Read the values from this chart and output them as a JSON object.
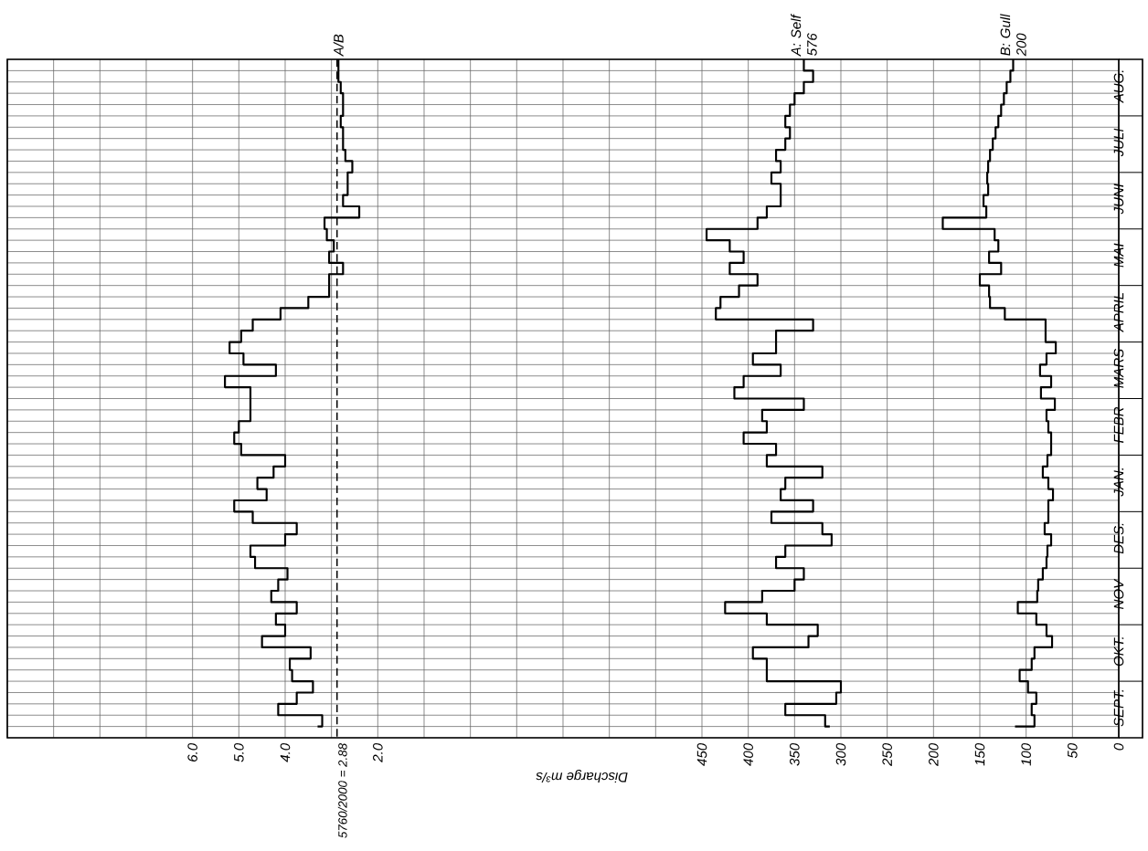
{
  "chart_data": {
    "type": "step",
    "orientation": "horizontal",
    "categories": [
      null,
      null,
      "AUG.",
      null,
      null,
      null,
      null,
      "JULI",
      null,
      null,
      null,
      null,
      "JUNI",
      null,
      null,
      null,
      null,
      "MAI",
      null,
      null,
      null,
      null,
      "APRIL",
      null,
      null,
      null,
      null,
      "MARS",
      null,
      null,
      null,
      null,
      "FEBR",
      null,
      null,
      null,
      null,
      "JAN.",
      null,
      null,
      null,
      null,
      "DES.",
      null,
      null,
      null,
      null,
      "NOV",
      null,
      null,
      null,
      null,
      "OKT.",
      null,
      null,
      null,
      null,
      "SEPT.",
      null,
      null
    ],
    "xlabel": "Discharge m³/s",
    "xlim": [
      1200,
      0
    ],
    "xticks": [
      0,
      50,
      100,
      150,
      200,
      250,
      300,
      350,
      400,
      450,
      {
        "value": 500,
        "label": null
      },
      {
        "value": 550,
        "label": null
      },
      {
        "value": 600,
        "label": null
      },
      {
        "value": 650,
        "label": null
      },
      {
        "value": 700,
        "label": null
      },
      {
        "value": 750,
        "label": null
      },
      {
        "value": 800,
        "label": null
      },
      {
        "value": 850,
        "label": null
      },
      {
        "value": 900,
        "label": null
      },
      {
        "value": 950,
        "label": null
      },
      {
        "value": 1000,
        "label": null
      },
      {
        "value": 1050,
        "label": null
      },
      {
        "value": 1100,
        "label": null
      },
      {
        "value": 1150,
        "label": null
      },
      {
        "value": 1200,
        "label": null
      }
    ],
    "x2lim": [
      10,
      -14
    ],
    "x2ticks": [
      {
        "value": 2,
        "label": "2.0"
      },
      {
        "value": 4,
        "label": "4.0"
      },
      {
        "value": 5,
        "label": "5.0"
      },
      {
        "value": 6,
        "label": "6.0"
      }
    ],
    "grid": true,
    "series": [
      {
        "name": "A/B",
        "color": "#000000",
        "axis": "x2",
        "values": [
          2.85,
          2.85,
          2.8,
          2.75,
          2.75,
          2.8,
          2.75,
          2.75,
          2.7,
          2.55,
          2.65,
          2.65,
          2.75,
          2.4,
          3.15,
          3.1,
          2.95,
          3.05,
          2.75,
          3.05,
          3.05,
          3.5,
          4.1,
          4.7,
          4.95,
          5.2,
          4.9,
          4.2,
          5.3,
          4.75,
          4.75,
          4.75,
          5.0,
          5.1,
          4.95,
          4.0,
          4.25,
          4.6,
          4.4,
          5.1,
          4.7,
          3.75,
          4.0,
          4.75,
          4.65,
          3.95,
          4.15,
          4.3,
          3.75,
          4.2,
          4.0,
          4.5,
          3.45,
          3.9,
          3.85,
          3.4,
          3.75,
          4.15,
          3.2,
          3.3
        ]
      },
      {
        "name": "A: Self 576",
        "color": "#000000",
        "values": [
          340,
          330,
          340,
          350,
          355,
          360,
          355,
          360,
          370,
          365,
          375,
          365,
          365,
          380,
          390,
          445,
          420,
          405,
          420,
          390,
          410,
          430,
          435,
          330,
          370,
          370,
          395,
          365,
          405,
          415,
          340,
          385,
          380,
          405,
          370,
          380,
          320,
          360,
          365,
          330,
          375,
          320,
          310,
          360,
          370,
          340,
          350,
          385,
          425,
          380,
          325,
          335,
          395,
          380,
          380,
          300,
          305,
          360,
          317,
          312
        ]
      },
      {
        "name": "B: Gull 200",
        "color": "#000000",
        "values": [
          114,
          117,
          121,
          124,
          127,
          130,
          133,
          136,
          139,
          141,
          142,
          141,
          146,
          143,
          190,
          134,
          130,
          140,
          127,
          150,
          140,
          139,
          123,
          79,
          79,
          68,
          78,
          85,
          73,
          84,
          69,
          78,
          76,
          73,
          73,
          77,
          82,
          76,
          71,
          76,
          76,
          80,
          73,
          77,
          78,
          82,
          87,
          88,
          109,
          89,
          78,
          72,
          91,
          94,
          107,
          98,
          89,
          94,
          91,
          112
        ]
      }
    ],
    "ref_lines": [
      {
        "axis": "x2",
        "value": 2.88,
        "label": "5760/2000 = 2.88",
        "line_style": "dashed",
        "color": "#000000"
      }
    ]
  }
}
